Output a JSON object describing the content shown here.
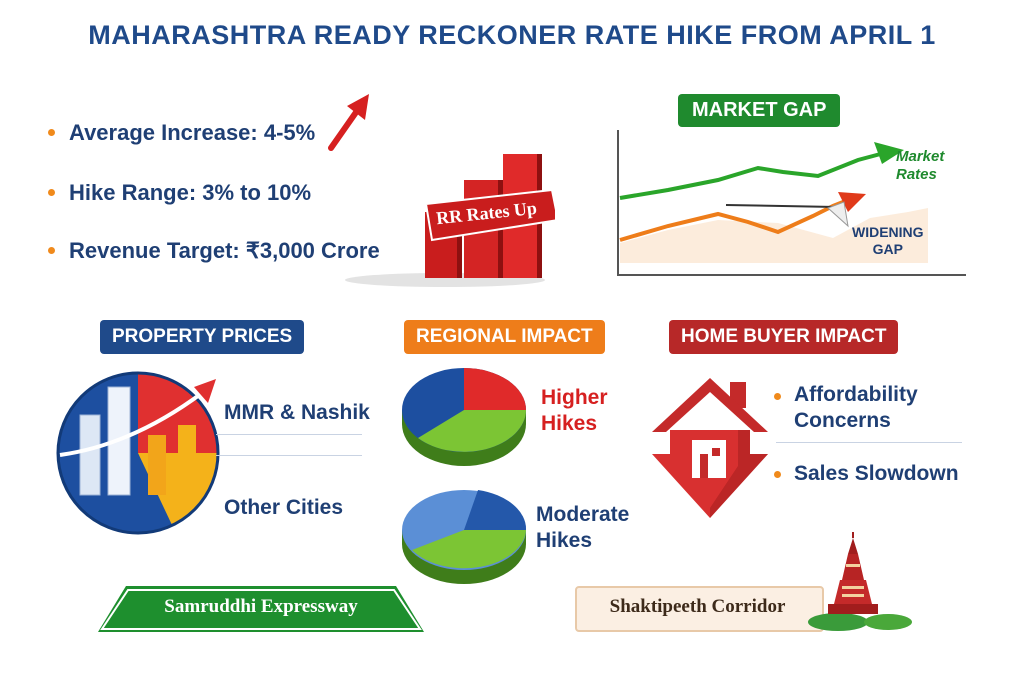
{
  "title": "MAHARASHTRA READY RECKONER RATE HIKE FROM APRIL 1",
  "bullets": [
    {
      "label": "Average Increase: 4-5%"
    },
    {
      "label": "Hike Range: 3% to 10%"
    },
    {
      "label": "Revenue Target: ₹3,000 Crore"
    }
  ],
  "rr_chart": {
    "banner": "RR Rates Up"
  },
  "market_gap": {
    "heading": "MARKET GAP",
    "market_rates_line1": "Market",
    "market_rates_line2": "Rates",
    "gap_line1": "WIDENING",
    "gap_line2": "GAP"
  },
  "property_prices": {
    "heading": "PROPERTY PRICES",
    "item1": "MMR & Nashik",
    "item2": "Other Cities"
  },
  "regional_impact": {
    "heading": "REGIONAL IMPACT",
    "higher_line1": "Higher",
    "higher_line2": "Hikes",
    "moderate_line1": "Moderate",
    "moderate_line2": "Hikes"
  },
  "home_buyer_impact": {
    "heading": "HOME BUYER IMPACT",
    "item1_line1": "Affordability",
    "item1_line2": "Concerns",
    "item2": "Sales Slowdown"
  },
  "projects": {
    "samruddhi": "Samruddhi Expressway",
    "shaktipeeth": "Shaktipeeth Corridor"
  },
  "colors": {
    "title_blue": "#1f4a8a",
    "green": "#1f8a2e",
    "orange": "#ee7d1a",
    "red": "#c42a2a",
    "blue": "#1f4a8a"
  }
}
